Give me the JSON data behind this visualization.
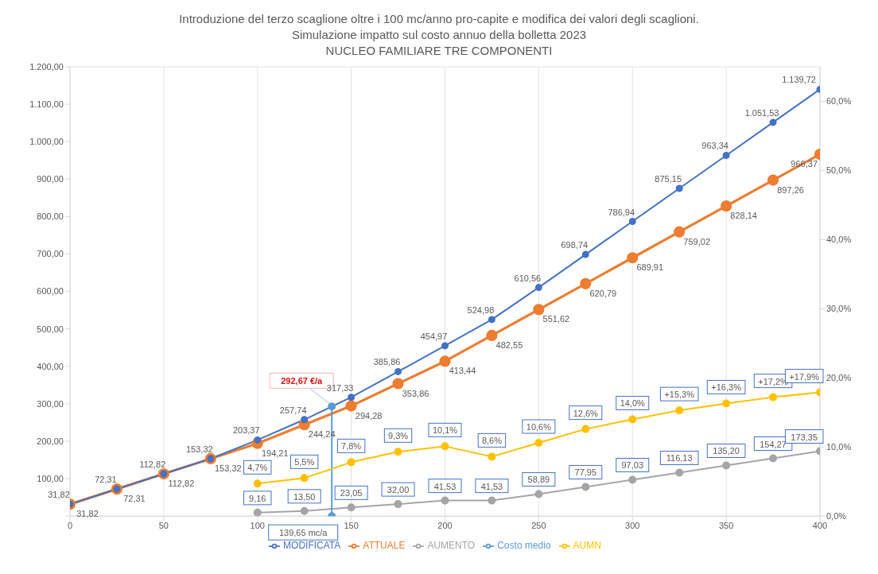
{
  "chart_data": {
    "type": "line",
    "title": "Introduzione del terzo scaglione oltre i 100 mc/anno pro-capite e modifica dei valori degli scaglioni.",
    "subtitle": "Simulazione impatto sul costo annuo della bolletta 2023\nNUCLEO FAMILIARE TRE COMPONENTI",
    "xlim": [
      0,
      400
    ],
    "xticks": [
      0,
      50,
      100,
      150,
      200,
      250,
      300,
      350,
      400
    ],
    "ylim": [
      0,
      1200
    ],
    "yticks": [
      {
        "value": 0,
        "label": null
      },
      {
        "value": 100,
        "label": "100,00"
      },
      {
        "value": 200,
        "label": "200,00"
      },
      {
        "value": 300,
        "label": "300,00"
      },
      {
        "value": 400,
        "label": "400,00"
      },
      {
        "value": 500,
        "label": "500,00"
      },
      {
        "value": 600,
        "label": "600,00"
      },
      {
        "value": 700,
        "label": "700,00"
      },
      {
        "value": 800,
        "label": "800,00"
      },
      {
        "value": 900,
        "label": "900,00"
      },
      {
        "value": 1000,
        "label": "1.000,00"
      },
      {
        "value": 1100,
        "label": "1.100,00"
      },
      {
        "value": 1200,
        "label": "1.200,00"
      }
    ],
    "y2lim": [
      0,
      65
    ],
    "y2ticks": [
      {
        "value": 0,
        "label": "0,0%"
      },
      {
        "value": 10,
        "label": "10,0%"
      },
      {
        "value": 20,
        "label": "20,0%"
      },
      {
        "value": 30,
        "label": "30,0%"
      },
      {
        "value": 40,
        "label": "40,0%"
      },
      {
        "value": 50,
        "label": "50,0%"
      },
      {
        "value": 60,
        "label": "60,0%"
      }
    ],
    "grid": true,
    "legend": "bottom",
    "marker": "circle",
    "line_style": "solid",
    "series": [
      {
        "name": "MODIFICATA",
        "color": "#4472c4",
        "x": [
          0,
          25,
          50,
          75,
          100,
          125,
          150,
          175,
          200,
          225,
          250,
          275,
          300,
          325,
          350,
          375,
          400
        ],
        "values": [
          31.82,
          72.31,
          112.82,
          153.32,
          203.37,
          257.74,
          317.33,
          385.86,
          454.97,
          524.98,
          610.56,
          698.74,
          786.94,
          875.15,
          963.34,
          1051.53,
          1139.72
        ],
        "value_labels": [
          "31,82",
          "72,31",
          "112,82",
          "153,32",
          "203,37",
          "257,74",
          "317,33",
          "385,86",
          "454,97",
          "524,98",
          "610,56",
          "698,74",
          "786,94",
          "875,15",
          "963,34",
          "1.051,53",
          "1.139,72"
        ]
      },
      {
        "name": "ATTUALE",
        "color": "#ed7d31",
        "x": [
          0,
          25,
          50,
          75,
          100,
          125,
          150,
          175,
          200,
          225,
          250,
          275,
          300,
          325,
          350,
          375,
          400
        ],
        "values": [
          31.82,
          72.31,
          112.82,
          153.32,
          194.21,
          244.24,
          294.28,
          353.86,
          413.44,
          482.55,
          551.62,
          620.79,
          689.91,
          759.02,
          828.14,
          897.26,
          966.37
        ],
        "value_labels": [
          "31,82",
          "72,31",
          "112,82",
          "153,32",
          "194,21",
          "244,24",
          "294,28",
          "353,86",
          "413,44",
          "482,55",
          "551,62",
          "620,79",
          "689,91",
          "759,02",
          "828,14",
          "897,26",
          "966,37"
        ]
      },
      {
        "name": "AUMENTO",
        "color": "#a5a5a5",
        "x": [
          100,
          125,
          150,
          175,
          200,
          225,
          250,
          275,
          300,
          325,
          350,
          375,
          400
        ],
        "values": [
          9.16,
          13.5,
          23.05,
          32.0,
          41.53,
          41.53,
          58.89,
          77.95,
          97.03,
          116.13,
          135.2,
          154.27,
          173.35
        ],
        "value_labels": [
          "9,16",
          "13,50",
          "23,05",
          "32,00",
          "41,53",
          "41,53",
          "58,89",
          "77,95",
          "97,03",
          "116,13",
          "135,20",
          "154,27",
          "173,35"
        ]
      },
      {
        "name": "Costo medio",
        "color": "#5b9bd5",
        "x": [
          139.65,
          139.65
        ],
        "values": [
          0,
          292.67
        ]
      },
      {
        "name": "AUMN",
        "color": "#ffc000",
        "axis": "y2",
        "x": [
          100,
          125,
          150,
          175,
          200,
          225,
          250,
          275,
          300,
          325,
          350,
          375,
          400
        ],
        "values": [
          4.7,
          5.5,
          7.8,
          9.3,
          10.1,
          8.6,
          10.6,
          12.6,
          14.0,
          15.3,
          16.3,
          17.2,
          17.9
        ],
        "value_labels": [
          "4,7%",
          "5,5%",
          "7,8%",
          "9,3%",
          "10,1%",
          "8,6%",
          "10,6%",
          "12,6%",
          "14,0%",
          "+15,3%",
          "+16,3%",
          "+17,2%",
          "+17,9%"
        ]
      }
    ],
    "annotations": [
      {
        "text": "292,67 €/a",
        "x": 139.65,
        "y": 292.67
      },
      {
        "text": "139,65 mc/a",
        "x": 139.65,
        "y": 0
      }
    ]
  }
}
